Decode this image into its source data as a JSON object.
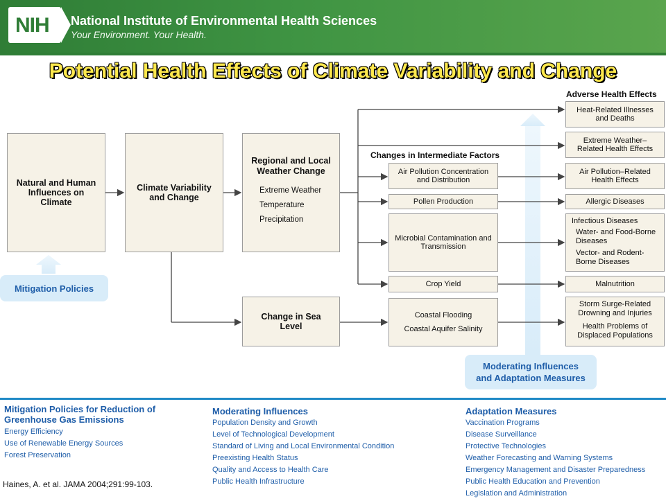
{
  "header": {
    "logo": "NIH",
    "org": "National Institute of Environmental Health Sciences",
    "tagline": "Your Environment. Your Health."
  },
  "title": "Potential Health Effects of Climate Variability and Change",
  "diagram": {
    "natural": "Natural and Human Influences on Climate",
    "climate": "Climate Variability and Change",
    "regional": {
      "title": "Regional and Local Weather Change",
      "items": [
        "Extreme Weather",
        "Temperature",
        "Precipitation"
      ]
    },
    "sea": "Change in Sea Level",
    "mitigation": "Mitigation Policies",
    "intermediate_header": "Changes in Intermediate Factors",
    "intermediate": [
      "Air Pollution Concentration and Distribution",
      "Pollen Production",
      "Microbial Contamination and Transmission",
      "Crop Yield"
    ],
    "coastal": [
      "Coastal Flooding",
      "Coastal Aquifer Salinity"
    ],
    "adverse_header": "Adverse Health Effects",
    "effects": {
      "heat": "Heat-Related Illnesses and Deaths",
      "extreme": "Extreme Weather–Related Health Effects",
      "air": "Air Pollution–Related Health Effects",
      "allergic": "Allergic Diseases",
      "infectious_title": "Infectious Diseases",
      "infectious_1": "Water- and Food-Borne Diseases",
      "infectious_2": "Vector- and Rodent-Borne Diseases",
      "malnutrition": "Malnutrition",
      "storm": "Storm Surge-Related Drowning and Injuries",
      "displaced": "Health Problems of Displaced Populations"
    },
    "moderating": "Moderating Influences and Adaptation Measures"
  },
  "legend": {
    "mitigation": {
      "title": "Mitigation Policies for Reduction of Greenhouse Gas Emissions",
      "items": [
        "Energy Efficiency",
        "Use of Renewable Energy Sources",
        "Forest Preservation"
      ]
    },
    "moderating": {
      "title": "Moderating Influences",
      "items": [
        "Population Density and Growth",
        "Level of Technological Development",
        "Standard of Living and Local Environmental Condition",
        "Preexisting Health Status",
        "Quality and Access to Health Care",
        "Public Health Infrastructure"
      ]
    },
    "adaptation": {
      "title": "Adaptation Measures",
      "items": [
        "Vaccination Programs",
        "Disease Surveillance",
        "Protective Technologies",
        "Weather Forecasting and Warning Systems",
        "Emergency Management and Disaster Preparedness",
        "Public Health Education and Prevention",
        "Legislation and Administration"
      ]
    }
  },
  "citation": "Haines, A. et al. JAMA 2004;291:99-103."
}
